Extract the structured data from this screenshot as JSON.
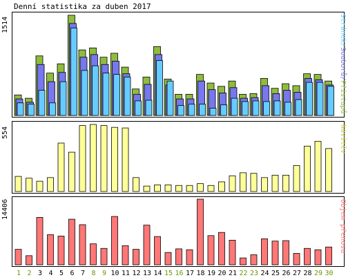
{
  "page": {
    "title": "Denní statistika za duben 2017"
  },
  "colors": {
    "visits": "#8fbc3e",
    "files": "#7777ee",
    "hits": "#66ccff",
    "sites": "#ffff99",
    "kbytes": "#ff7777",
    "weekday_label": "#000000",
    "weekend_label": "#669900",
    "bar_stroke": "#000000"
  },
  "panels": {
    "top": {
      "ymax": "1514",
      "legend": {
        "hits": "Stránek",
        "sep1": "/",
        "files": "Souborů",
        "sep2": "/",
        "visits": "Přístupů"
      }
    },
    "middle": {
      "ymax": "554",
      "legend": "Návštěv"
    },
    "bottom": {
      "ymax": "14406",
      "legend": "Objem přenosu"
    }
  },
  "chart_data": [
    {
      "type": "bar",
      "categories": [
        "1",
        "2",
        "3",
        "4",
        "5",
        "6",
        "7",
        "8",
        "9",
        "10",
        "11",
        "12",
        "13",
        "14",
        "15",
        "16",
        "17",
        "18",
        "19",
        "20",
        "21",
        "22",
        "23",
        "24",
        "25",
        "26",
        "27",
        "28",
        "29",
        "30"
      ],
      "weekend": [
        1,
        2,
        8,
        9,
        15,
        16,
        22,
        23,
        29,
        30
      ],
      "ylim": [
        0,
        1514
      ],
      "series": [
        {
          "name": "Přístupů",
          "values": [
            310,
            260,
            900,
            640,
            780,
            1514,
            990,
            1020,
            880,
            940,
            730,
            400,
            580,
            1040,
            550,
            320,
            320,
            620,
            490,
            440,
            520,
            320,
            330,
            560,
            410,
            480,
            450,
            630,
            620,
            520
          ]
        },
        {
          "name": "Souborů",
          "values": [
            250,
            200,
            770,
            510,
            650,
            1390,
            880,
            920,
            770,
            820,
            630,
            320,
            470,
            920,
            460,
            250,
            250,
            520,
            390,
            340,
            420,
            260,
            270,
            450,
            330,
            380,
            350,
            560,
            540,
            460
          ]
        },
        {
          "name": "Stránek",
          "values": [
            190,
            170,
            380,
            190,
            510,
            1320,
            680,
            750,
            640,
            620,
            580,
            220,
            230,
            830,
            520,
            150,
            170,
            170,
            110,
            160,
            260,
            210,
            220,
            210,
            220,
            200,
            240,
            500,
            500,
            440
          ]
        }
      ]
    },
    {
      "type": "bar",
      "categories": [
        "1",
        "2",
        "3",
        "4",
        "5",
        "6",
        "7",
        "8",
        "9",
        "10",
        "11",
        "12",
        "13",
        "14",
        "15",
        "16",
        "17",
        "18",
        "19",
        "20",
        "21",
        "22",
        "23",
        "24",
        "25",
        "26",
        "27",
        "28",
        "29",
        "30"
      ],
      "ylim": [
        0,
        554
      ],
      "series": [
        {
          "name": "Návštěv",
          "values": [
            125,
            110,
            85,
            115,
            400,
            325,
            545,
            554,
            545,
            530,
            525,
            115,
            45,
            55,
            55,
            50,
            50,
            65,
            50,
            80,
            130,
            155,
            150,
            115,
            135,
            135,
            215,
            375,
            415,
            355
          ]
        }
      ]
    },
    {
      "type": "bar",
      "categories": [
        "1",
        "2",
        "3",
        "4",
        "5",
        "6",
        "7",
        "8",
        "9",
        "10",
        "11",
        "12",
        "13",
        "14",
        "15",
        "16",
        "17",
        "18",
        "19",
        "20",
        "21",
        "22",
        "23",
        "24",
        "25",
        "26",
        "27",
        "28",
        "29",
        "30"
      ],
      "ylim": [
        0,
        14406
      ],
      "series": [
        {
          "name": "Objem přenosu",
          "values": [
            3400,
            2000,
            10400,
            6600,
            6300,
            10000,
            8800,
            4600,
            3600,
            10600,
            4200,
            3400,
            8700,
            6200,
            2700,
            3500,
            3300,
            14406,
            6400,
            7100,
            5400,
            1500,
            2200,
            5700,
            5200,
            5300,
            2500,
            3600,
            3300,
            3900
          ]
        }
      ]
    }
  ]
}
